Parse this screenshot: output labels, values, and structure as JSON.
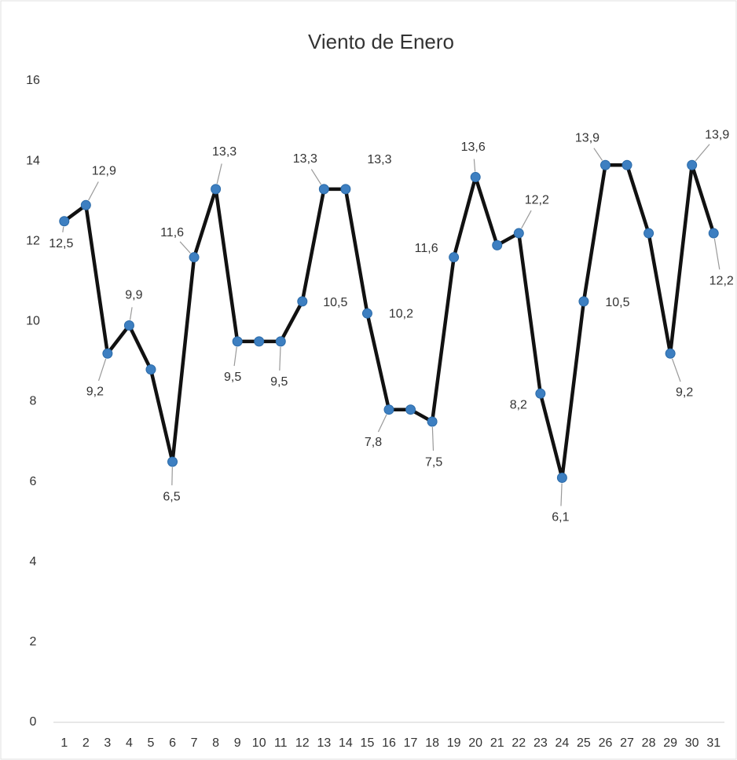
{
  "chart_data": {
    "type": "line",
    "title": "Viento de Enero",
    "categories": [
      "1",
      "2",
      "3",
      "4",
      "5",
      "6",
      "7",
      "8",
      "9",
      "10",
      "11",
      "12",
      "13",
      "14",
      "15",
      "16",
      "17",
      "18",
      "19",
      "20",
      "21",
      "22",
      "23",
      "24",
      "25",
      "26",
      "27",
      "28",
      "29",
      "30",
      "31"
    ],
    "series": [
      {
        "name": "Viento",
        "color": "#111111",
        "marker_color": "#3d7fc1",
        "values": [
          12.5,
          12.9,
          9.2,
          9.9,
          8.8,
          6.5,
          11.6,
          13.3,
          9.5,
          9.5,
          9.5,
          10.5,
          13.3,
          13.3,
          10.2,
          7.8,
          7.8,
          7.5,
          11.6,
          13.6,
          11.9,
          12.2,
          8.2,
          6.1,
          10.5,
          13.9,
          13.9,
          12.2,
          9.2,
          13.9,
          12.2
        ],
        "value_labels": [
          "12,5",
          "12,9",
          "9,2",
          "9,9",
          null,
          "6,5",
          "11,6",
          "13,3",
          "9,5",
          null,
          "9,5",
          "10,5",
          "13,3",
          "13,3",
          "10,2",
          "7,8",
          null,
          "7,5",
          "11,6",
          "13,6",
          null,
          "12,2",
          "8,2",
          "6,1",
          "10,5",
          "13,9",
          null,
          null,
          "9,2",
          "13,9",
          "12,2"
        ]
      }
    ],
    "ylim": [
      0,
      16
    ],
    "yticks": [
      0,
      2,
      4,
      6,
      8,
      10,
      12,
      14,
      16
    ],
    "grid": false
  }
}
